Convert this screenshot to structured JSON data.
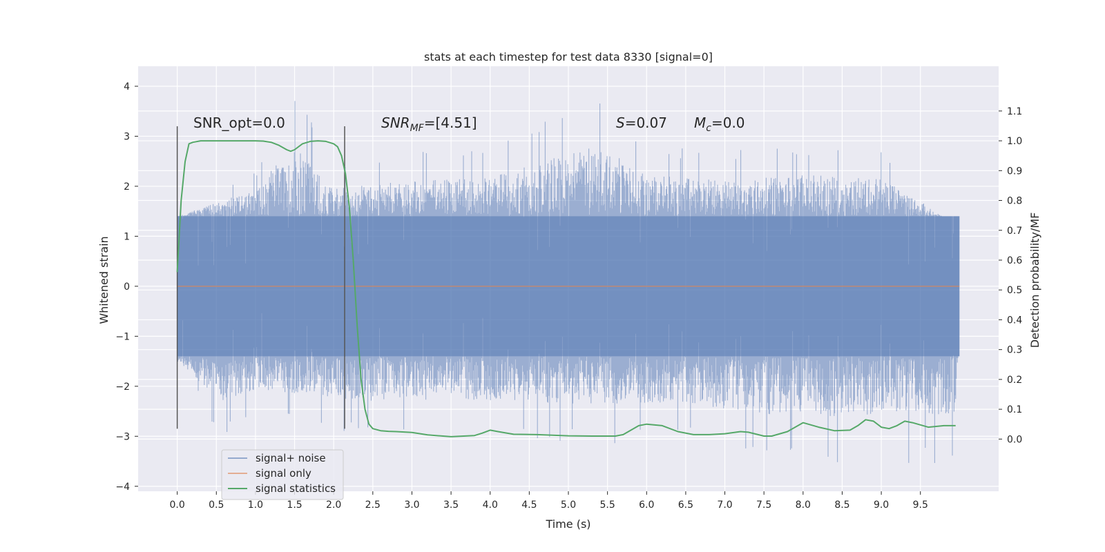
{
  "chart_data": {
    "type": "line",
    "title": "stats at each timestep for test data 8330 [signal=0]",
    "xlabel": "Time (s)",
    "ylabel_left": "Whitened strain",
    "ylabel_right": "Detection probability/MF",
    "xlim": [
      -0.5,
      10.5
    ],
    "ylim_left": [
      -4.1,
      4.4
    ],
    "ylim_right": [
      -0.175,
      1.25
    ],
    "x_ticks": [
      0.0,
      0.5,
      1.0,
      1.5,
      2.0,
      2.5,
      3.0,
      3.5,
      4.0,
      4.5,
      5.0,
      5.5,
      6.0,
      6.5,
      7.0,
      7.5,
      8.0,
      8.5,
      9.0,
      9.5
    ],
    "y_ticks_left": [
      4,
      3,
      2,
      1,
      0,
      -1,
      -2,
      -3,
      -4
    ],
    "y_ticks_right": [
      1.1,
      1.0,
      0.9,
      0.8,
      0.7,
      0.6,
      0.5,
      0.4,
      0.3,
      0.2,
      0.1,
      0.0
    ],
    "grid": true,
    "legend_position": "lower-left",
    "annotations": {
      "snr_opt": "SNR_opt=0.0",
      "snr_mf_main": "SNR",
      "snr_mf_sub": "MF",
      "snr_mf_rest": "=[4.51]",
      "s_label": "S",
      "s_rest": "=0.07",
      "mc_label": "M",
      "mc_sub": "c",
      "mc_rest": "=0.0"
    },
    "vertical_lines": [
      {
        "x": 0.0,
        "y_range": [
          -2.85,
          3.2
        ]
      },
      {
        "x": 2.14,
        "y_range": [
          -2.85,
          3.2
        ]
      }
    ],
    "series": [
      {
        "name": "signal+ noise",
        "color": "#4c72b0",
        "description_envelope_upper": [
          [
            0.0,
            1.4
          ],
          [
            1.0,
            2.4
          ],
          [
            1.5,
            4.05
          ],
          [
            2.0,
            2.4
          ],
          [
            3.0,
            2.7
          ],
          [
            4.0,
            2.8
          ],
          [
            5.38,
            4.0
          ],
          [
            6.0,
            2.9
          ],
          [
            7.0,
            2.7
          ],
          [
            8.0,
            2.9
          ],
          [
            9.0,
            2.8
          ],
          [
            10.0,
            1.0
          ]
        ],
        "description_envelope_lower": [
          [
            0.0,
            -1.5
          ],
          [
            0.55,
            -3.15
          ],
          [
            1.0,
            -2.6
          ],
          [
            2.5,
            -3.05
          ],
          [
            3.5,
            -2.95
          ],
          [
            5.8,
            -3.2
          ],
          [
            6.5,
            -3.05
          ],
          [
            7.2,
            -3.45
          ],
          [
            8.3,
            -3.65
          ],
          [
            8.5,
            -3.55
          ],
          [
            9.95,
            -3.55
          ],
          [
            10.0,
            -0.4
          ]
        ]
      },
      {
        "name": "signal only",
        "color": "#dd8452",
        "x": [
          0.0,
          10.0
        ],
        "y": [
          0.0,
          0.0
        ]
      },
      {
        "name": "signal statistics",
        "color": "#55a868",
        "axis": "right",
        "x": [
          0.0,
          0.05,
          0.1,
          0.15,
          0.2,
          0.3,
          0.5,
          0.8,
          1.0,
          1.1,
          1.2,
          1.3,
          1.4,
          1.45,
          1.5,
          1.6,
          1.7,
          1.8,
          1.9,
          2.0,
          2.05,
          2.1,
          2.15,
          2.2,
          2.25,
          2.3,
          2.35,
          2.4,
          2.45,
          2.5,
          2.6,
          2.7,
          2.8,
          3.0,
          3.2,
          3.5,
          3.8,
          3.9,
          4.0,
          4.1,
          4.3,
          4.6,
          5.0,
          5.3,
          5.6,
          5.7,
          5.8,
          5.9,
          6.0,
          6.2,
          6.4,
          6.6,
          6.8,
          7.0,
          7.2,
          7.3,
          7.5,
          7.6,
          7.8,
          8.0,
          8.2,
          8.4,
          8.6,
          8.7,
          8.8,
          8.9,
          9.0,
          9.1,
          9.2,
          9.3,
          9.4,
          9.6,
          9.8,
          9.95
        ],
        "y": [
          0.56,
          0.8,
          0.93,
          0.99,
          0.995,
          1.0,
          1.0,
          1.0,
          1.0,
          0.999,
          0.995,
          0.985,
          0.97,
          0.965,
          0.97,
          0.99,
          0.998,
          1.0,
          0.998,
          0.99,
          0.98,
          0.95,
          0.89,
          0.78,
          0.6,
          0.38,
          0.2,
          0.1,
          0.05,
          0.035,
          0.028,
          0.026,
          0.025,
          0.022,
          0.014,
          0.008,
          0.012,
          0.02,
          0.03,
          0.025,
          0.016,
          0.015,
          0.011,
          0.01,
          0.01,
          0.015,
          0.03,
          0.045,
          0.05,
          0.045,
          0.025,
          0.015,
          0.015,
          0.018,
          0.025,
          0.023,
          0.01,
          0.01,
          0.025,
          0.055,
          0.04,
          0.028,
          0.03,
          0.045,
          0.065,
          0.06,
          0.04,
          0.035,
          0.045,
          0.06,
          0.055,
          0.04,
          0.045,
          0.045
        ]
      }
    ]
  }
}
